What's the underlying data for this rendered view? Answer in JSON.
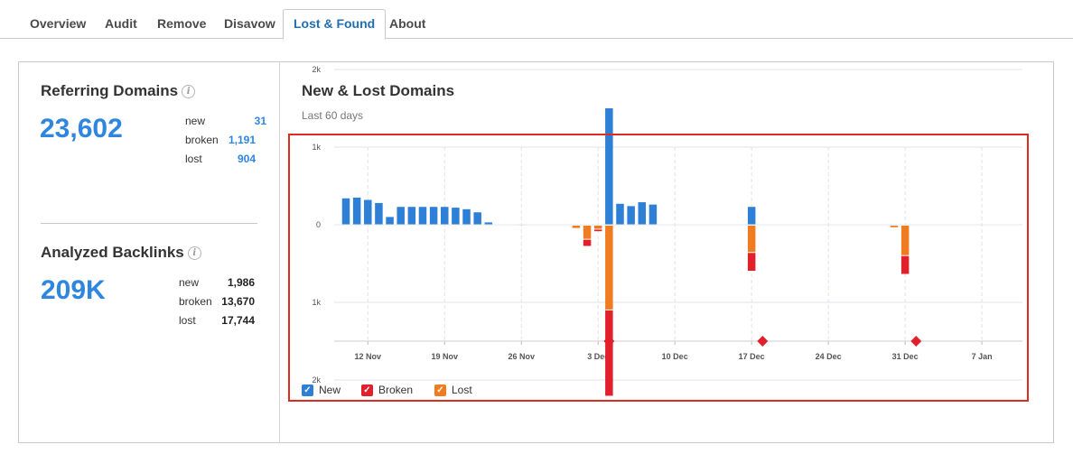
{
  "tabs": [
    {
      "label": "Overview",
      "active": false
    },
    {
      "label": "Audit",
      "active": false
    },
    {
      "label": "Remove",
      "active": false
    },
    {
      "label": "Disavow",
      "active": false
    },
    {
      "label": "Lost & Found",
      "active": true
    },
    {
      "label": "About",
      "active": false
    }
  ],
  "referring_domains": {
    "title": "Referring Domains",
    "total": "23,602",
    "stats": [
      {
        "label": "new",
        "value": "31"
      },
      {
        "label": "broken",
        "value": "1,191"
      },
      {
        "label": "lost",
        "value": "904"
      }
    ]
  },
  "analyzed_backlinks": {
    "title": "Analyzed Backlinks",
    "total": "209K",
    "stats": [
      {
        "label": "new",
        "value": "1,986"
      },
      {
        "label": "broken",
        "value": "13,670"
      },
      {
        "label": "lost",
        "value": "17,744"
      }
    ]
  },
  "info_icon": {
    "name": "info-icon",
    "glyph": "i"
  },
  "chart_header": {
    "title": "New & Lost Domains",
    "subtitle": "Last 60 days"
  },
  "colors": {
    "new": "#2e7fd6",
    "broken": "#e0202b",
    "lost": "#f07c22",
    "marker": "#e0202b",
    "grid": "#dfe3e8",
    "tab_active": "#1f6fb2",
    "highlight": "#e02b20"
  },
  "chart_data": {
    "type": "bar",
    "start_date": "2018-11-10",
    "x_tick_labels": [
      "12 Nov",
      "19 Nov",
      "26 Nov",
      "3 Dec",
      "10 Dec",
      "17 Dec",
      "24 Dec",
      "31 Dec",
      "7 Jan"
    ],
    "y_tick_labels": [
      "2k",
      "1k",
      "0",
      "1k",
      "2k"
    ],
    "ylim": [
      -2000,
      2000
    ],
    "stacked": true,
    "series": [
      {
        "name": "New",
        "color": "#2e7fd6",
        "points": [
          {
            "date": "2018-11-10",
            "value": 340
          },
          {
            "date": "2018-11-11",
            "value": 350
          },
          {
            "date": "2018-11-12",
            "value": 320
          },
          {
            "date": "2018-11-13",
            "value": 280
          },
          {
            "date": "2018-11-14",
            "value": 100
          },
          {
            "date": "2018-11-15",
            "value": 230
          },
          {
            "date": "2018-11-16",
            "value": 230
          },
          {
            "date": "2018-11-17",
            "value": 230
          },
          {
            "date": "2018-11-18",
            "value": 230
          },
          {
            "date": "2018-11-19",
            "value": 230
          },
          {
            "date": "2018-11-20",
            "value": 220
          },
          {
            "date": "2018-11-21",
            "value": 200
          },
          {
            "date": "2018-11-22",
            "value": 160
          },
          {
            "date": "2018-11-23",
            "value": 30
          },
          {
            "date": "2018-11-26",
            "value": 5
          },
          {
            "date": "2018-12-04",
            "value": 1500
          },
          {
            "date": "2018-12-05",
            "value": 270
          },
          {
            "date": "2018-12-06",
            "value": 240
          },
          {
            "date": "2018-12-07",
            "value": 290
          },
          {
            "date": "2018-12-08",
            "value": 260
          },
          {
            "date": "2018-12-17",
            "value": 230
          }
        ]
      },
      {
        "name": "Lost",
        "color": "#f07c22",
        "points": [
          {
            "date": "2018-12-01",
            "value": -30
          },
          {
            "date": "2018-12-02",
            "value": -170
          },
          {
            "date": "2018-12-03",
            "value": -40
          },
          {
            "date": "2018-12-04",
            "value": -1080
          },
          {
            "date": "2018-12-17",
            "value": -340
          },
          {
            "date": "2018-12-30",
            "value": -20
          },
          {
            "date": "2018-12-31",
            "value": -380
          }
        ]
      },
      {
        "name": "Broken",
        "color": "#e0202b",
        "points": [
          {
            "date": "2018-12-02",
            "value": -80
          },
          {
            "date": "2018-12-03",
            "value": -20
          },
          {
            "date": "2018-12-04",
            "value": -1100
          },
          {
            "date": "2018-12-17",
            "value": -230
          },
          {
            "date": "2018-12-31",
            "value": -230
          }
        ]
      }
    ],
    "annotation_markers": [
      "2018-12-04",
      "2018-12-18",
      "2019-01-01"
    ],
    "legend": [
      {
        "label": "New",
        "checked": true,
        "color": "#2e7fd6"
      },
      {
        "label": "Broken",
        "checked": true,
        "color": "#e0202b"
      },
      {
        "label": "Lost",
        "checked": true,
        "color": "#f07c22"
      }
    ],
    "legend_position": "bottom-left",
    "grid": true
  }
}
